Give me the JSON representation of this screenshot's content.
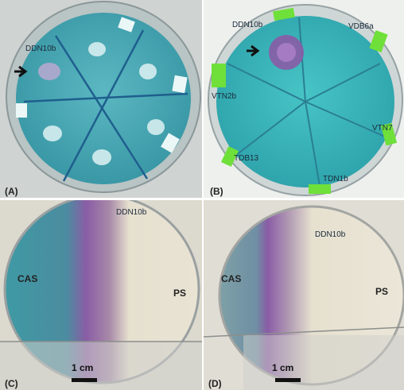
{
  "panels": {
    "a": {
      "label": "(A)",
      "isolate": "DDN10b"
    },
    "b": {
      "label": "(B)",
      "isolates": {
        "ddn10b": "DDN10b",
        "vdb6a": "VDB6a",
        "vtn2b": "VTN2b",
        "vtn7": "VTN7",
        "tdb13": "TDB13",
        "tdn1b": "TDN1b"
      }
    },
    "c": {
      "label": "(C)",
      "isolate": "DDN10b",
      "left_text": "CAS",
      "right_text": "PS",
      "scale": "1 cm"
    },
    "d": {
      "label": "(D)",
      "isolate": "DDN10b",
      "left_text": "CAS",
      "right_text": "PS",
      "scale": "1 cm"
    }
  },
  "colors": {
    "cas_blue": "#3e9aa4",
    "halo_purple": "#8a5ca6",
    "ps_cream": "#e6e0cf",
    "tape_green": "#6fe03a"
  }
}
